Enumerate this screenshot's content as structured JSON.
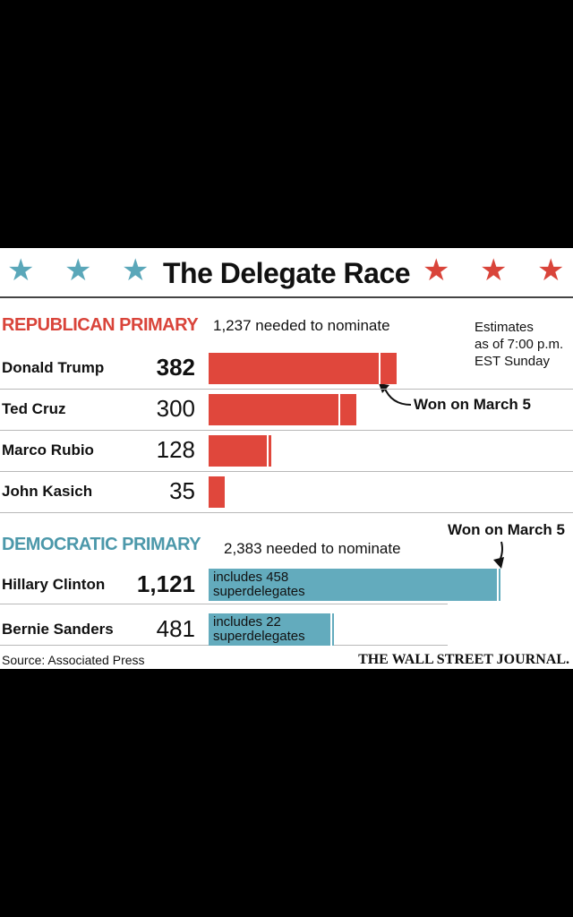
{
  "header": {
    "title": "The Delegate Race",
    "star_glyph": "★",
    "colors": {
      "blue_star": "#5aa7b9",
      "red_star": "#d9443a"
    }
  },
  "republican": {
    "label": "REPUBLICAN PRIMARY",
    "needed_text": "1,237 needed to nominate",
    "estimate_note": [
      "Estimates",
      "as of 7:00 p.m.",
      "EST Sunday"
    ],
    "annotation": "Won on March 5"
  },
  "democratic": {
    "label": "DEMOCRATIC PRIMARY",
    "needed_text": "2,383 needed to nominate",
    "annotation": "Won on March 5"
  },
  "footer": {
    "source": "Source: Associated Press",
    "publisher": "THE WALL STREET JOURNAL."
  },
  "chart_data": [
    {
      "type": "bar",
      "orientation": "horizontal",
      "title": "REPUBLICAN PRIMARY",
      "color": "#e0473c",
      "categories": [
        "Donald Trump",
        "Ted Cruz",
        "Marco Rubio",
        "John Kasich"
      ],
      "values": [
        382,
        300,
        128,
        35
      ],
      "value_labels": [
        "382",
        "300",
        "128",
        "35"
      ],
      "won_on_march_5": [
        36,
        36,
        9,
        3
      ],
      "leader": "Donald Trump"
    },
    {
      "type": "bar",
      "orientation": "horizontal",
      "title": "DEMOCRATIC PRIMARY",
      "color": "#63abbd",
      "categories": [
        "Hillary Clinton",
        "Bernie Sanders"
      ],
      "values": [
        1121,
        481
      ],
      "value_labels": [
        "1,121",
        "481"
      ],
      "won_on_march_5": [
        14,
        12
      ],
      "bar_notes": [
        [
          "includes 458",
          "superdelegates"
        ],
        [
          "includes 22",
          "superdelegates"
        ]
      ],
      "leader": "Hillary Clinton"
    }
  ]
}
